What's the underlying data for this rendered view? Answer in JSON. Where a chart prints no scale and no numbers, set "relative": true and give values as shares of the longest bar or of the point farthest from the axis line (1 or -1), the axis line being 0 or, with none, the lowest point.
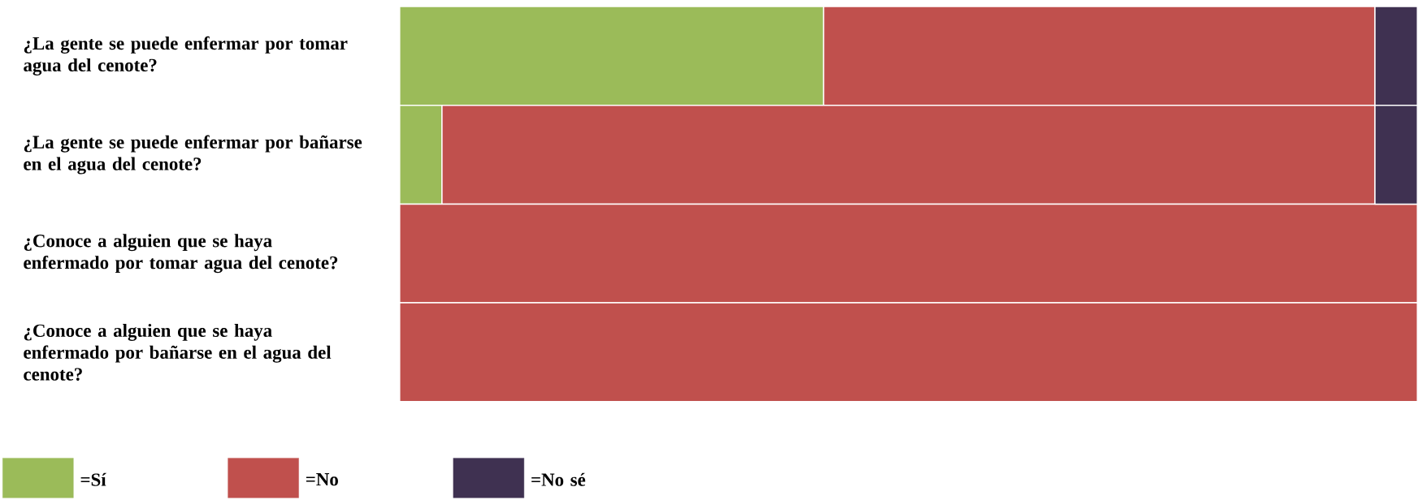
{
  "chart_data": {
    "type": "bar",
    "orientation": "horizontal",
    "stacked": true,
    "relative": true,
    "legend": "bottom left",
    "categories": [
      "¿La gente se puede enfermar por tomar agua del cenote?",
      "¿La gente se puede enfermar por bañarse en el agua del cenote?",
      "¿Conoce a alguien que se haya enfermado por tomar agua del cenote?",
      "¿Conoce a alguien que se haya enfermado por bañarse en el agua del cenote?"
    ],
    "series": [
      {
        "name": "=Sí",
        "color": "#9bbb59",
        "values": [
          0.4166,
          0.0416,
          null,
          null
        ]
      },
      {
        "name": "=No",
        "color": "#c0504d",
        "values": [
          0.5417,
          0.9167,
          1,
          1
        ]
      },
      {
        "name": "=No sé",
        "color": "#3f3151",
        "values": [
          0.0417,
          0.0417,
          null,
          null
        ]
      }
    ]
  }
}
